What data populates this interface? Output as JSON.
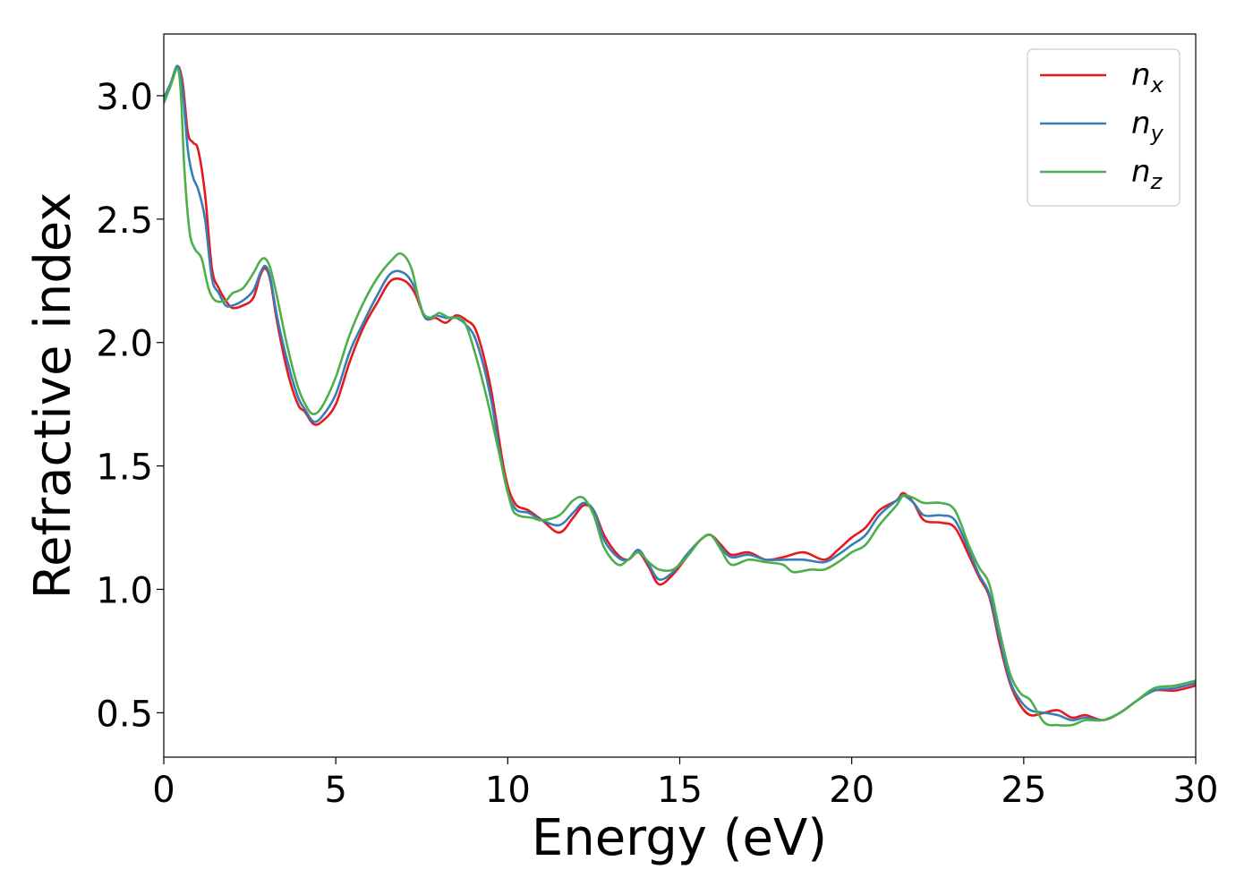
{
  "chart_data": {
    "type": "line",
    "title": "",
    "xlabel": "Energy (eV)",
    "ylabel": "Refractive index",
    "xlim": [
      0,
      30
    ],
    "ylim": [
      0.32,
      3.25
    ],
    "xticks": [
      0,
      5,
      10,
      15,
      20,
      25,
      30
    ],
    "xtick_labels": [
      "0",
      "5",
      "10",
      "15",
      "20",
      "25",
      "30"
    ],
    "yticks": [
      0.5,
      1.0,
      1.5,
      2.0,
      2.5,
      3.0
    ],
    "ytick_labels": [
      "0.5",
      "1.0",
      "1.5",
      "2.0",
      "2.5",
      "3.0"
    ],
    "grid": false,
    "legend_position": "top-right",
    "series": [
      {
        "name": "n_x",
        "label_base": "n",
        "label_sub": "x",
        "color": "#e41a1c",
        "points": [
          [
            0,
            2.99
          ],
          [
            0.2,
            3.05
          ],
          [
            0.4,
            3.12
          ],
          [
            0.55,
            3.05
          ],
          [
            0.7,
            2.85
          ],
          [
            0.85,
            2.81
          ],
          [
            1.0,
            2.78
          ],
          [
            1.2,
            2.6
          ],
          [
            1.4,
            2.3
          ],
          [
            1.6,
            2.22
          ],
          [
            1.8,
            2.17
          ],
          [
            2.0,
            2.14
          ],
          [
            2.3,
            2.15
          ],
          [
            2.6,
            2.18
          ],
          [
            2.8,
            2.27
          ],
          [
            2.95,
            2.3
          ],
          [
            3.1,
            2.25
          ],
          [
            3.3,
            2.08
          ],
          [
            3.6,
            1.88
          ],
          [
            3.9,
            1.75
          ],
          [
            4.1,
            1.72
          ],
          [
            4.35,
            1.67
          ],
          [
            4.6,
            1.68
          ],
          [
            5.0,
            1.75
          ],
          [
            5.4,
            1.92
          ],
          [
            5.8,
            2.06
          ],
          [
            6.2,
            2.16
          ],
          [
            6.6,
            2.25
          ],
          [
            7.0,
            2.25
          ],
          [
            7.3,
            2.2
          ],
          [
            7.6,
            2.1
          ],
          [
            7.9,
            2.1
          ],
          [
            8.2,
            2.08
          ],
          [
            8.5,
            2.11
          ],
          [
            8.8,
            2.09
          ],
          [
            9.1,
            2.04
          ],
          [
            9.5,
            1.82
          ],
          [
            9.9,
            1.48
          ],
          [
            10.2,
            1.35
          ],
          [
            10.6,
            1.32
          ],
          [
            11.0,
            1.28
          ],
          [
            11.5,
            1.23
          ],
          [
            11.9,
            1.29
          ],
          [
            12.2,
            1.34
          ],
          [
            12.5,
            1.32
          ],
          [
            12.8,
            1.22
          ],
          [
            13.2,
            1.14
          ],
          [
            13.5,
            1.12
          ],
          [
            13.8,
            1.15
          ],
          [
            14.1,
            1.09
          ],
          [
            14.4,
            1.02
          ],
          [
            14.8,
            1.06
          ],
          [
            15.2,
            1.13
          ],
          [
            15.6,
            1.2
          ],
          [
            15.9,
            1.22
          ],
          [
            16.2,
            1.18
          ],
          [
            16.5,
            1.14
          ],
          [
            17.0,
            1.15
          ],
          [
            17.5,
            1.12
          ],
          [
            18.0,
            1.13
          ],
          [
            18.6,
            1.15
          ],
          [
            19.2,
            1.12
          ],
          [
            19.6,
            1.16
          ],
          [
            20.0,
            1.21
          ],
          [
            20.4,
            1.25
          ],
          [
            20.8,
            1.32
          ],
          [
            21.3,
            1.36
          ],
          [
            21.5,
            1.39
          ],
          [
            21.8,
            1.35
          ],
          [
            22.1,
            1.28
          ],
          [
            22.6,
            1.27
          ],
          [
            23.0,
            1.25
          ],
          [
            23.4,
            1.14
          ],
          [
            23.7,
            1.05
          ],
          [
            24.0,
            0.97
          ],
          [
            24.3,
            0.78
          ],
          [
            24.6,
            0.62
          ],
          [
            24.9,
            0.53
          ],
          [
            25.2,
            0.49
          ],
          [
            25.6,
            0.5
          ],
          [
            26.0,
            0.51
          ],
          [
            26.4,
            0.48
          ],
          [
            26.8,
            0.49
          ],
          [
            27.3,
            0.47
          ],
          [
            27.8,
            0.5
          ],
          [
            28.3,
            0.55
          ],
          [
            28.8,
            0.59
          ],
          [
            29.4,
            0.59
          ],
          [
            30.0,
            0.61
          ]
        ]
      },
      {
        "name": "n_y",
        "label_base": "n",
        "label_sub": "y",
        "color": "#377eb8",
        "points": [
          [
            0,
            2.99
          ],
          [
            0.2,
            3.05
          ],
          [
            0.4,
            3.12
          ],
          [
            0.55,
            3.02
          ],
          [
            0.7,
            2.78
          ],
          [
            0.85,
            2.67
          ],
          [
            1.0,
            2.62
          ],
          [
            1.2,
            2.5
          ],
          [
            1.4,
            2.26
          ],
          [
            1.6,
            2.2
          ],
          [
            1.8,
            2.15
          ],
          [
            2.0,
            2.15
          ],
          [
            2.3,
            2.17
          ],
          [
            2.6,
            2.21
          ],
          [
            2.8,
            2.28
          ],
          [
            2.95,
            2.31
          ],
          [
            3.1,
            2.26
          ],
          [
            3.3,
            2.1
          ],
          [
            3.6,
            1.92
          ],
          [
            3.9,
            1.78
          ],
          [
            4.1,
            1.73
          ],
          [
            4.35,
            1.68
          ],
          [
            4.6,
            1.7
          ],
          [
            5.0,
            1.79
          ],
          [
            5.4,
            1.96
          ],
          [
            5.8,
            2.08
          ],
          [
            6.2,
            2.19
          ],
          [
            6.6,
            2.28
          ],
          [
            7.0,
            2.28
          ],
          [
            7.3,
            2.22
          ],
          [
            7.6,
            2.1
          ],
          [
            7.9,
            2.11
          ],
          [
            8.2,
            2.1
          ],
          [
            8.5,
            2.1
          ],
          [
            8.8,
            2.07
          ],
          [
            9.1,
            2.0
          ],
          [
            9.5,
            1.78
          ],
          [
            9.9,
            1.45
          ],
          [
            10.2,
            1.33
          ],
          [
            10.6,
            1.31
          ],
          [
            11.0,
            1.28
          ],
          [
            11.5,
            1.26
          ],
          [
            11.9,
            1.31
          ],
          [
            12.2,
            1.35
          ],
          [
            12.5,
            1.32
          ],
          [
            12.8,
            1.2
          ],
          [
            13.2,
            1.13
          ],
          [
            13.5,
            1.12
          ],
          [
            13.8,
            1.16
          ],
          [
            14.1,
            1.1
          ],
          [
            14.4,
            1.04
          ],
          [
            14.8,
            1.07
          ],
          [
            15.2,
            1.14
          ],
          [
            15.6,
            1.2
          ],
          [
            15.9,
            1.22
          ],
          [
            16.2,
            1.17
          ],
          [
            16.5,
            1.13
          ],
          [
            17.0,
            1.14
          ],
          [
            17.5,
            1.12
          ],
          [
            18.0,
            1.12
          ],
          [
            18.6,
            1.12
          ],
          [
            19.2,
            1.11
          ],
          [
            19.6,
            1.14
          ],
          [
            20.0,
            1.18
          ],
          [
            20.4,
            1.22
          ],
          [
            20.8,
            1.3
          ],
          [
            21.3,
            1.36
          ],
          [
            21.5,
            1.38
          ],
          [
            21.8,
            1.35
          ],
          [
            22.1,
            1.3
          ],
          [
            22.6,
            1.3
          ],
          [
            23.0,
            1.28
          ],
          [
            23.4,
            1.16
          ],
          [
            23.7,
            1.06
          ],
          [
            24.0,
            0.98
          ],
          [
            24.3,
            0.8
          ],
          [
            24.6,
            0.63
          ],
          [
            24.9,
            0.55
          ],
          [
            25.2,
            0.51
          ],
          [
            25.6,
            0.5
          ],
          [
            26.0,
            0.49
          ],
          [
            26.4,
            0.47
          ],
          [
            26.8,
            0.48
          ],
          [
            27.3,
            0.47
          ],
          [
            27.8,
            0.5
          ],
          [
            28.3,
            0.55
          ],
          [
            28.8,
            0.59
          ],
          [
            29.4,
            0.6
          ],
          [
            30.0,
            0.62
          ]
        ]
      },
      {
        "name": "n_z",
        "label_base": "n",
        "label_sub": "z",
        "color": "#4daf4a",
        "points": [
          [
            0,
            2.97
          ],
          [
            0.2,
            3.04
          ],
          [
            0.4,
            3.11
          ],
          [
            0.5,
            3.0
          ],
          [
            0.6,
            2.7
          ],
          [
            0.75,
            2.45
          ],
          [
            0.9,
            2.38
          ],
          [
            1.1,
            2.34
          ],
          [
            1.3,
            2.22
          ],
          [
            1.5,
            2.17
          ],
          [
            1.8,
            2.17
          ],
          [
            2.0,
            2.2
          ],
          [
            2.3,
            2.22
          ],
          [
            2.6,
            2.28
          ],
          [
            2.8,
            2.33
          ],
          [
            2.95,
            2.34
          ],
          [
            3.1,
            2.3
          ],
          [
            3.3,
            2.18
          ],
          [
            3.6,
            1.98
          ],
          [
            3.9,
            1.82
          ],
          [
            4.15,
            1.74
          ],
          [
            4.35,
            1.71
          ],
          [
            4.6,
            1.74
          ],
          [
            5.0,
            1.86
          ],
          [
            5.4,
            2.03
          ],
          [
            5.8,
            2.16
          ],
          [
            6.2,
            2.26
          ],
          [
            6.6,
            2.33
          ],
          [
            6.9,
            2.36
          ],
          [
            7.2,
            2.3
          ],
          [
            7.5,
            2.13
          ],
          [
            7.8,
            2.1
          ],
          [
            8.0,
            2.12
          ],
          [
            8.3,
            2.1
          ],
          [
            8.7,
            2.09
          ],
          [
            9.0,
            1.98
          ],
          [
            9.4,
            1.77
          ],
          [
            9.8,
            1.52
          ],
          [
            10.1,
            1.34
          ],
          [
            10.3,
            1.3
          ],
          [
            10.7,
            1.29
          ],
          [
            11.0,
            1.28
          ],
          [
            11.5,
            1.3
          ],
          [
            11.9,
            1.36
          ],
          [
            12.2,
            1.37
          ],
          [
            12.5,
            1.3
          ],
          [
            12.8,
            1.17
          ],
          [
            13.2,
            1.1
          ],
          [
            13.5,
            1.12
          ],
          [
            13.8,
            1.15
          ],
          [
            14.1,
            1.11
          ],
          [
            14.4,
            1.08
          ],
          [
            14.8,
            1.08
          ],
          [
            15.2,
            1.13
          ],
          [
            15.6,
            1.2
          ],
          [
            15.9,
            1.22
          ],
          [
            16.2,
            1.16
          ],
          [
            16.5,
            1.1
          ],
          [
            17.0,
            1.12
          ],
          [
            17.5,
            1.11
          ],
          [
            18.0,
            1.1
          ],
          [
            18.3,
            1.07
          ],
          [
            18.8,
            1.08
          ],
          [
            19.2,
            1.08
          ],
          [
            19.6,
            1.11
          ],
          [
            20.0,
            1.15
          ],
          [
            20.4,
            1.18
          ],
          [
            20.8,
            1.26
          ],
          [
            21.3,
            1.34
          ],
          [
            21.5,
            1.38
          ],
          [
            21.8,
            1.37
          ],
          [
            22.1,
            1.35
          ],
          [
            22.6,
            1.35
          ],
          [
            23.0,
            1.32
          ],
          [
            23.4,
            1.18
          ],
          [
            23.7,
            1.09
          ],
          [
            24.0,
            1.02
          ],
          [
            24.3,
            0.83
          ],
          [
            24.6,
            0.66
          ],
          [
            24.9,
            0.58
          ],
          [
            25.2,
            0.55
          ],
          [
            25.6,
            0.46
          ],
          [
            26.0,
            0.45
          ],
          [
            26.4,
            0.45
          ],
          [
            26.8,
            0.47
          ],
          [
            27.3,
            0.47
          ],
          [
            27.8,
            0.5
          ],
          [
            28.3,
            0.55
          ],
          [
            28.8,
            0.6
          ],
          [
            29.4,
            0.61
          ],
          [
            30.0,
            0.63
          ]
        ]
      }
    ]
  }
}
